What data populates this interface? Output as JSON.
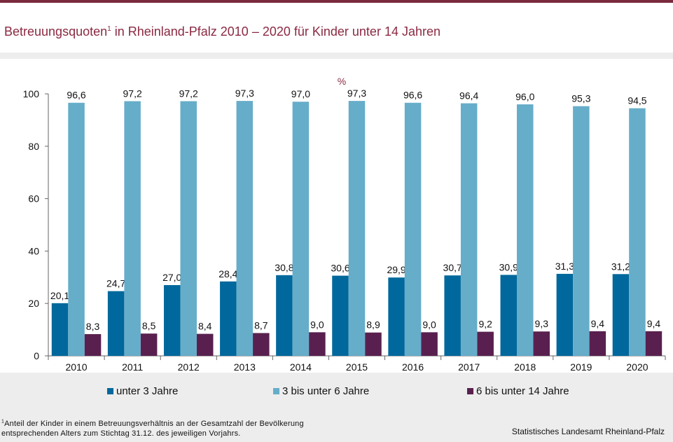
{
  "title": {
    "text": "Betreuungsquoten",
    "footnote_mark": "1",
    "rest": " in Rheinland-Pfalz 2010 – 2020 für Kinder unter 14 Jahren"
  },
  "footnote": {
    "mark": "1",
    "line1": "Anteil der Kinder in einem Betreuungsverhältnis  an der Gesamtzahl der Bevölkerung",
    "line2": "entsprechenden  Alters zum Stichtag 31.12. des jeweiligen Vorjahrs."
  },
  "source": "Statistisches Landesamt Rheinland-Pfalz",
  "colors": {
    "accent": "#8b2942",
    "topbar": "#7b2a3e",
    "panel": "#ededed"
  },
  "chart_data": {
    "type": "bar",
    "ylabel": "%",
    "ylim": [
      0,
      100
    ],
    "yticks": [
      0,
      20,
      40,
      60,
      80,
      100
    ],
    "grid": false,
    "legend_position": "bottom",
    "categories": [
      "2010",
      "2011",
      "2012",
      "2013",
      "2014",
      "2015",
      "2016",
      "2017",
      "2018",
      "2019",
      "2020"
    ],
    "series": [
      {
        "name": "unter 3 Jahre",
        "color": "#00689c",
        "values": [
          20.1,
          24.7,
          27.0,
          28.4,
          30.8,
          30.6,
          29.9,
          30.7,
          30.9,
          31.3,
          31.2
        ],
        "labels": [
          "20,1",
          "24,7",
          "27,0",
          "28,4",
          "30,8",
          "30,6",
          "29,9",
          "30,7",
          "30,9",
          "31,3",
          "31,2"
        ]
      },
      {
        "name": "3 bis unter 6 Jahre",
        "color": "#66adc9",
        "values": [
          96.6,
          97.2,
          97.2,
          97.3,
          97.0,
          97.3,
          96.6,
          96.4,
          96.0,
          95.3,
          94.5
        ],
        "labels": [
          "96,6",
          "97,2",
          "97,2",
          "97,3",
          "97,0",
          "97,3",
          "96,6",
          "96,4",
          "96,0",
          "95,3",
          "94,5"
        ]
      },
      {
        "name": "6 bis unter 14 Jahre",
        "color": "#59204f",
        "values": [
          8.3,
          8.5,
          8.4,
          8.7,
          9.0,
          8.9,
          9.0,
          9.2,
          9.3,
          9.4,
          9.4
        ],
        "labels": [
          "8,3",
          "8,5",
          "8,4",
          "8,7",
          "9,0",
          "8,9",
          "9,0",
          "9,2",
          "9,3",
          "9,4",
          "9,4"
        ]
      }
    ]
  }
}
